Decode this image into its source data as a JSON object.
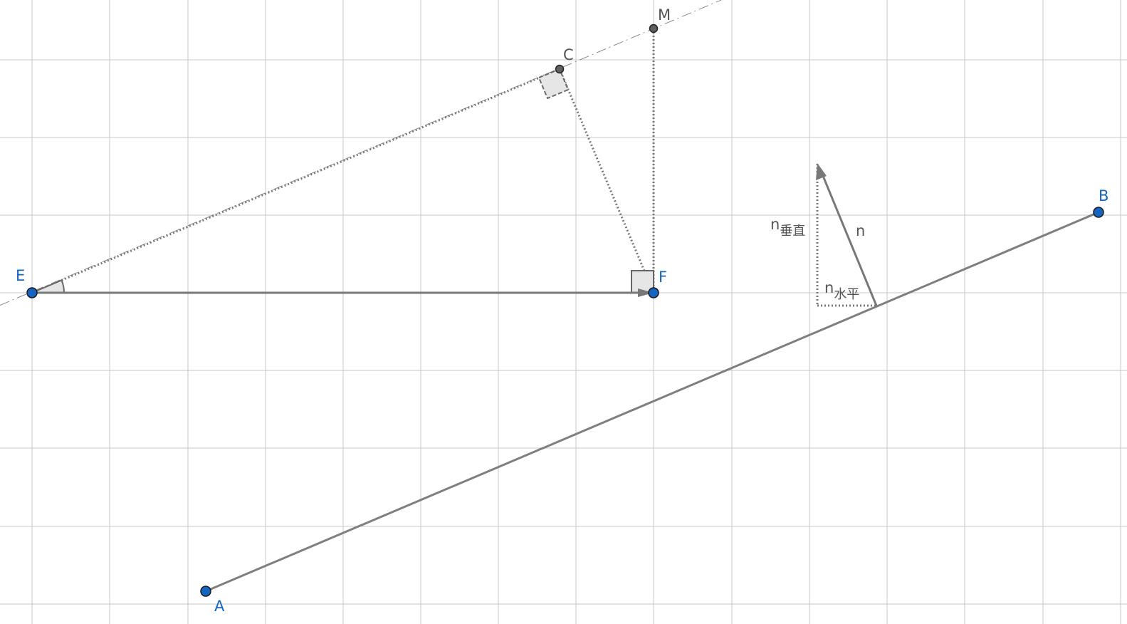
{
  "points": {
    "A": {
      "label": "A",
      "color": "#1565c0"
    },
    "B": {
      "label": "B",
      "color": "#1565c0"
    },
    "E": {
      "label": "E",
      "color": "#1565c0"
    },
    "F": {
      "label": "F",
      "color": "#1565c0"
    },
    "C": {
      "label": "C",
      "color": "#555555"
    },
    "M": {
      "label": "M",
      "color": "#555555"
    }
  },
  "vector_labels": {
    "n": "n",
    "n_vertical_base": "n",
    "n_vertical_sub": "垂直",
    "n_horizontal_base": "n",
    "n_horizontal_sub": "水平"
  },
  "colors": {
    "point_fill": "#1565c0",
    "aux_point_fill": "#606060",
    "line": "#787878",
    "grid": "#c8c8c8",
    "angle_fill": "#e6e6e6"
  }
}
